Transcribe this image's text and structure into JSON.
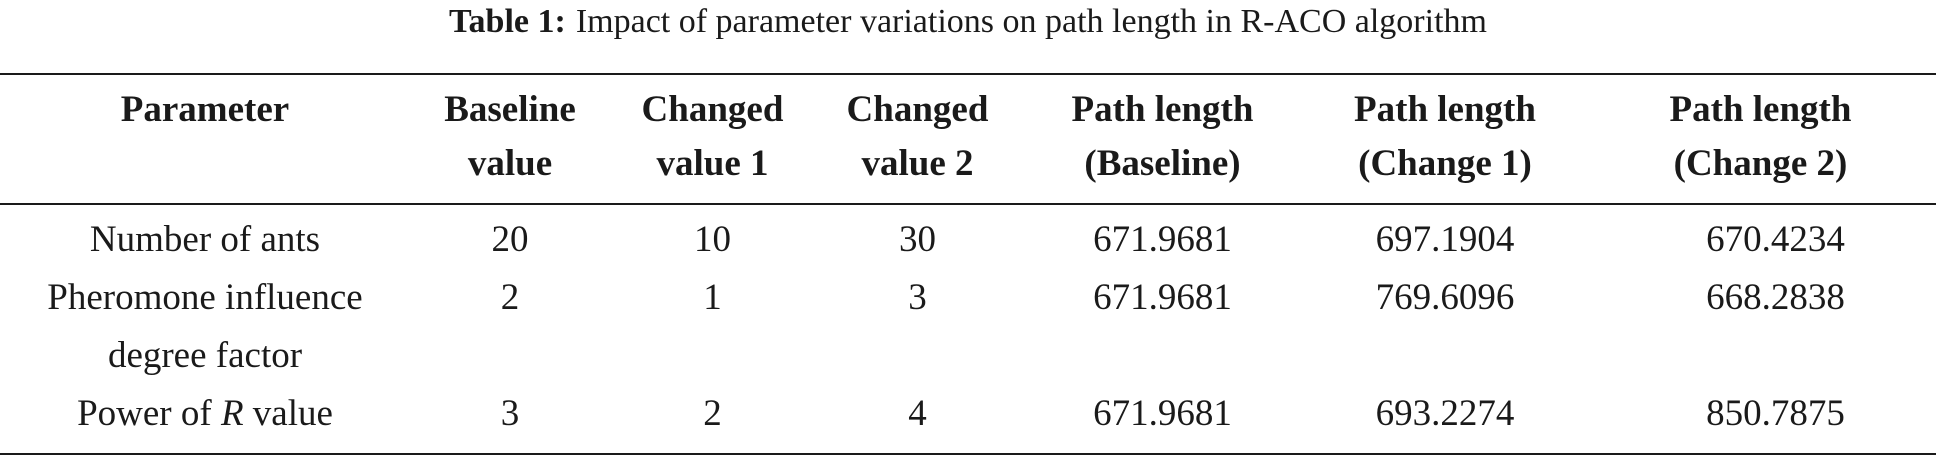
{
  "caption": {
    "label": "Table 1:",
    "text": "Impact of parameter variations on path length in R-ACO algorithm"
  },
  "table": {
    "headers": [
      "Parameter",
      "Baseline\nvalue",
      "Changed\nvalue 1",
      "Changed\nvalue 2",
      "Path length\n(Baseline)",
      "Path length\n(Change 1)",
      "Path length\n(Change 2)"
    ],
    "rows": [
      {
        "parameter": "Number of ants",
        "baseline": "20",
        "changed1": "10",
        "changed2": "30",
        "path_baseline": "671.9681",
        "path_change1": "697.1904",
        "path_change2": "670.4234"
      },
      {
        "parameter": "Pheromone influence\ndegree factor",
        "baseline": "2",
        "changed1": "1",
        "changed2": "3",
        "path_baseline": "671.9681",
        "path_change1": "769.6096",
        "path_change2": "668.2838"
      },
      {
        "parameter_prefix": "Power of ",
        "parameter_italic": "R",
        "parameter_suffix": " value",
        "baseline": "3",
        "changed1": "2",
        "changed2": "4",
        "path_baseline": "671.9681",
        "path_change1": "693.2274",
        "path_change2": "850.7875"
      }
    ]
  }
}
